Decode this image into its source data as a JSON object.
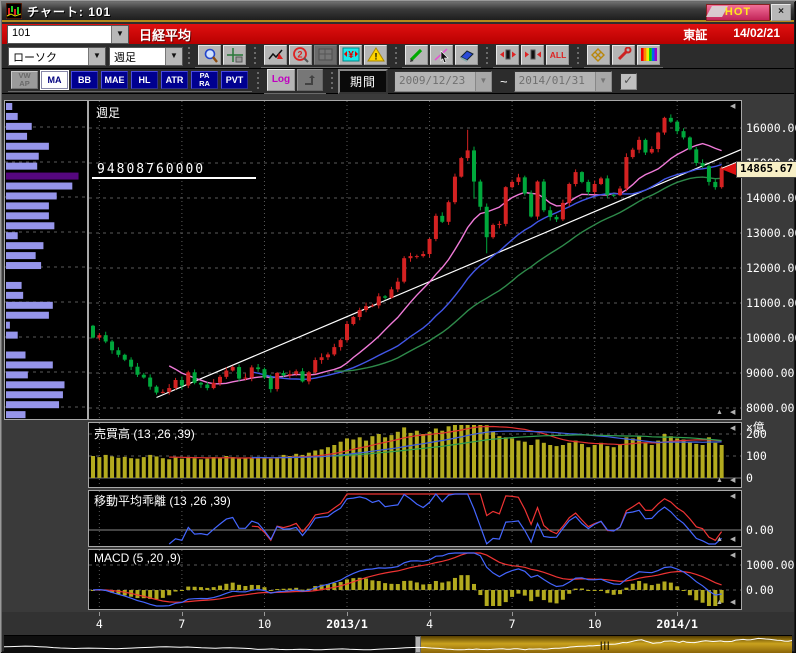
{
  "window": {
    "title": "チャート: 101",
    "hot_label": "HOT",
    "close_label": "×"
  },
  "header": {
    "code": "101",
    "name": "日経平均",
    "exchange": "東証",
    "date": "14/02/21"
  },
  "toolbar1": {
    "chart_type": "ローソク",
    "timeframe": "週足",
    "icon_groups": [
      [
        "zoom-icon",
        "crosshair-icon"
      ],
      [
        "draw-trend-icon",
        "circled-2-icon",
        "grid-icon",
        "yen-converter-icon",
        "warning-icon"
      ],
      [
        "pencil-icon",
        "select-cursor-icon",
        "eraser-icon"
      ],
      [
        "candle-expand-icon",
        "candle-shrink-icon",
        "all-button"
      ],
      [
        "pattern-icon",
        "tools-icon",
        "rainbow-icon"
      ]
    ],
    "all_label": "ALL"
  },
  "toolbar2": {
    "indicator_buttons": [
      {
        "label": "VW\nAP",
        "state": "disabled"
      },
      {
        "label": "MA",
        "state": "active"
      },
      {
        "label": "BB",
        "state": "normal"
      },
      {
        "label": "MAE",
        "state": "normal"
      },
      {
        "label": "HL",
        "state": "normal"
      },
      {
        "label": "ATR",
        "state": "normal"
      },
      {
        "label": "PA\nRA",
        "state": "normal"
      },
      {
        "label": "PVT",
        "state": "normal"
      }
    ],
    "log_label": "Log",
    "period_label": "期間",
    "date_from": "2009/12/23",
    "tilde": "~",
    "date_to": "2014/01/31",
    "checkbox_checked": true
  },
  "chart": {
    "panel_label": "週足",
    "volume_at_price": "94808760000",
    "price_tooltip": "14865.67",
    "volume_unit": "×億",
    "sub_panels": [
      {
        "title": "売買高 (13 ,26 ,39)",
        "ticks": [
          200,
          100,
          0
        ]
      },
      {
        "title": "移動平均乖離 (13 ,26 ,39)",
        "ticks": [
          0
        ]
      },
      {
        "title": "MACD (5 ,20 ,9)",
        "ticks": [
          1000,
          0
        ]
      }
    ]
  },
  "chart_data": {
    "type": "candlestick",
    "title": "日経平均 週足",
    "timeframe": "weekly",
    "ylim": [
      8000,
      16000
    ],
    "y_step": 1000,
    "last_price": 14865.67,
    "x_axis_labels": [
      {
        "label": "4",
        "week": 1
      },
      {
        "label": "7",
        "week": 14
      },
      {
        "label": "10",
        "week": 27
      },
      {
        "label": "2013/1",
        "week": 40,
        "bold": true
      },
      {
        "label": "4",
        "week": 53
      },
      {
        "label": "7",
        "week": 66
      },
      {
        "label": "10",
        "week": 79
      },
      {
        "label": "2014/1",
        "week": 92,
        "bold": true
      }
    ],
    "first_open": 10350,
    "closes": [
      10010,
      10080,
      9900,
      9650,
      9520,
      9380,
      9180,
      8950,
      8870,
      8610,
      8440,
      8460,
      8570,
      8800,
      8640,
      9020,
      8720,
      8670,
      8570,
      8720,
      8890,
      9070,
      9170,
      8840,
      8870,
      9160,
      9110,
      8870,
      8540,
      9000,
      8930,
      8970,
      9050,
      8760,
      9020,
      9370,
      9450,
      9530,
      9740,
      9940,
      10400,
      10600,
      10800,
      10910,
      10930,
      11190,
      11150,
      11390,
      11610,
      12280,
      12340,
      12340,
      12400,
      12830,
      13490,
      13320,
      13880,
      14610,
      15140,
      15360,
      14470,
      13750,
      12880,
      13230,
      13260,
      14310,
      14460,
      14590,
      14130,
      13470,
      14470,
      13650,
      13460,
      13390,
      13860,
      14400,
      14740,
      14460,
      14170,
      14400,
      14560,
      14090,
      14080,
      14270,
      15170,
      15380,
      15660,
      15300,
      15400,
      15870,
      16290,
      16180,
      15910,
      15730,
      15390,
      15000,
      14910,
      14460,
      14310,
      14865.67
    ],
    "volumes": [
      100,
      95,
      105,
      98,
      92,
      96,
      90,
      88,
      95,
      105,
      98,
      90,
      85,
      95,
      88,
      92,
      90,
      85,
      88,
      95,
      90,
      100,
      95,
      88,
      90,
      92,
      95,
      90,
      88,
      95,
      105,
      100,
      110,
      105,
      115,
      125,
      130,
      140,
      150,
      165,
      180,
      175,
      185,
      170,
      190,
      200,
      185,
      195,
      210,
      230,
      205,
      215,
      200,
      210,
      225,
      215,
      235,
      245,
      260,
      270,
      265,
      255,
      240,
      210,
      190,
      185,
      180,
      170,
      165,
      150,
      175,
      160,
      150,
      145,
      150,
      160,
      170,
      155,
      140,
      150,
      160,
      145,
      140,
      150,
      185,
      180,
      190,
      160,
      150,
      170,
      200,
      190,
      180,
      175,
      165,
      155,
      150,
      185,
      160,
      150
    ],
    "volume_unit": "億",
    "wick_overrides": {
      "59": {
        "high": 15950
      },
      "60": {
        "low": 13980
      },
      "62": {
        "low": 12420
      },
      "90": {
        "high": 16320
      }
    },
    "overlays": {
      "sma_periods": [
        13,
        26,
        39
      ],
      "trendline": {
        "from_week": 10,
        "from_price": 8300,
        "to_week": 99,
        "to_price": 15150
      }
    },
    "sub_indicators": [
      {
        "name": "売買高",
        "params": [
          13,
          26,
          39
        ]
      },
      {
        "name": "移動平均乖離",
        "params": [
          13,
          26,
          39
        ]
      },
      {
        "name": "MACD",
        "params": [
          5,
          20,
          9
        ]
      }
    ],
    "volume_profile": {
      "values": [
        0.08,
        0.15,
        0.33,
        0.27,
        0.55,
        0.42,
        0.4,
        0.93,
        0.85,
        0.65,
        0.55,
        0.55,
        0.62,
        0.15,
        0.48,
        0.38,
        0.45,
        0,
        0.2,
        0.22,
        0.6,
        0.55,
        0.05,
        0.15,
        0,
        0.25,
        0.6,
        0.28,
        0.75,
        0.73,
        0.68,
        0.25
      ],
      "highlight_index": 7,
      "highlight_value": "94808760000"
    },
    "navigator_prefix": [
      10500,
      10650,
      10800,
      11000,
      10850,
      10600,
      10350,
      9950,
      9700,
      9550,
      9350,
      9450,
      9600,
      9500,
      9380,
      9250,
      9150,
      9400,
      9620,
      9800,
      10050,
      10250,
      10450,
      10600,
      10350,
      10200,
      10400,
      10100,
      9850,
      9650,
      9500,
      9720,
      9900,
      9700,
      9500,
      9300,
      8700,
      8850,
      9050,
      8720,
      8550,
      8650,
      8820,
      8700,
      8520,
      8420,
      8700,
      8920,
      9050,
      8800,
      8620,
      8500,
      8450,
      8750,
      9050,
      9250,
      9550,
      9850,
      10050,
      10080
    ]
  },
  "colors": {
    "up_candle": "#d42222",
    "down_candle": "#00a83c",
    "sma13": "#f07ad8",
    "sma26": "#4256e8",
    "sma39": "#2e8a4a",
    "trendline": "#ffffff",
    "volume_bar": "#b2aa1e",
    "macd_hist": "#b2aa1e",
    "vol_ma1": "#e03030",
    "vol_ma2": "#4060e0",
    "vol_ma3": "#30a050",
    "kairi_short": "#4466ff",
    "kairi_long": "#ee3333",
    "macd_line": "#4466ff",
    "macd_signal": "#ee3333",
    "profile_bar": "#9695ea",
    "profile_highlight": "#55077e",
    "grid": "#5a5a5a",
    "accent_red": "#c00000",
    "nav_gold": "#caa21e"
  }
}
